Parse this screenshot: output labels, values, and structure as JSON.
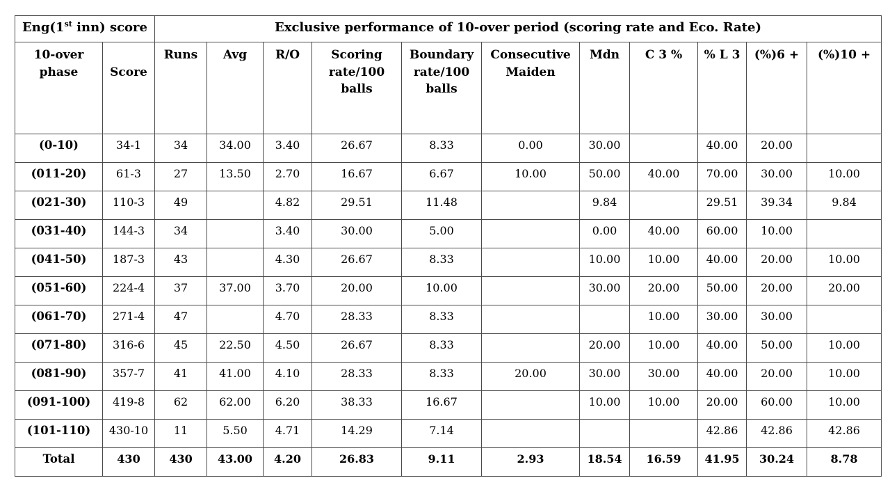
{
  "page": {
    "background": "#ffffff",
    "text_color": "#000000",
    "border_color": "#4a4a4a"
  },
  "table": {
    "merged_header": {
      "left": {
        "prefix": "Eng(1",
        "sup": "st",
        "suffix": " inn) score"
      },
      "right": "Exclusive performance of 10-over period (scoring rate and Eco. Rate)"
    },
    "columns": [
      "10-over phase",
      "Score",
      "Runs",
      "Avg",
      "R/O",
      "Scoring rate/100 balls",
      "Boundary rate/100 balls",
      "Consecutive Maiden",
      "Mdn",
      "C 3 %",
      "% L 3",
      "(%)6 +",
      "(%)10 +"
    ],
    "rows": [
      {
        "cells": [
          "(0-10)",
          "34-1",
          "34",
          "34.00",
          "3.40",
          "26.67",
          "8.33",
          "0.00",
          "30.00",
          "",
          "40.00",
          "20.00",
          ""
        ]
      },
      {
        "cells": [
          "(011-20)",
          "61-3",
          "27",
          "13.50",
          "2.70",
          "16.67",
          "6.67",
          "10.00",
          "50.00",
          "40.00",
          "70.00",
          "30.00",
          "10.00"
        ]
      },
      {
        "cells": [
          "(021-30)",
          "110-3",
          "49",
          "",
          "4.82",
          "29.51",
          "11.48",
          "",
          "9.84",
          "",
          "29.51",
          "39.34",
          "9.84"
        ]
      },
      {
        "cells": [
          "(031-40)",
          "144-3",
          "34",
          "",
          "3.40",
          "30.00",
          "5.00",
          "",
          "0.00",
          "40.00",
          "60.00",
          "10.00",
          ""
        ]
      },
      {
        "cells": [
          "(041-50)",
          "187-3",
          "43",
          "",
          "4.30",
          "26.67",
          "8.33",
          "",
          "10.00",
          "10.00",
          "40.00",
          "20.00",
          "10.00"
        ]
      },
      {
        "cells": [
          "(051-60)",
          "224-4",
          "37",
          "37.00",
          "3.70",
          "20.00",
          "10.00",
          "",
          "30.00",
          "20.00",
          "50.00",
          "20.00",
          "20.00"
        ]
      },
      {
        "cells": [
          "(061-70)",
          "271-4",
          "47",
          "",
          "4.70",
          "28.33",
          "8.33",
          "",
          "",
          "10.00",
          "30.00",
          "30.00",
          ""
        ]
      },
      {
        "cells": [
          "(071-80)",
          "316-6",
          "45",
          "22.50",
          "4.50",
          "26.67",
          "8.33",
          "",
          "20.00",
          "10.00",
          "40.00",
          "50.00",
          "10.00"
        ]
      },
      {
        "cells": [
          "(081-90)",
          "357-7",
          "41",
          "41.00",
          "4.10",
          "28.33",
          "8.33",
          "20.00",
          "30.00",
          "30.00",
          "40.00",
          "20.00",
          "10.00"
        ]
      },
      {
        "cells": [
          "(091-100)",
          "419-8",
          "62",
          "62.00",
          "6.20",
          "38.33",
          "16.67",
          "",
          "10.00",
          "10.00",
          "20.00",
          "60.00",
          "10.00"
        ]
      },
      {
        "cells": [
          "(101-110)",
          "430-10",
          "11",
          "5.50",
          "4.71",
          "14.29",
          "7.14",
          "",
          "",
          "",
          "42.86",
          "42.86",
          "42.86"
        ]
      },
      {
        "cells": [
          "Total",
          "430",
          "430",
          "43.00",
          "4.20",
          "26.83",
          "9.11",
          "2.93",
          "18.54",
          "16.59",
          "41.95",
          "30.24",
          "8.78"
        ],
        "bold": true
      }
    ]
  }
}
